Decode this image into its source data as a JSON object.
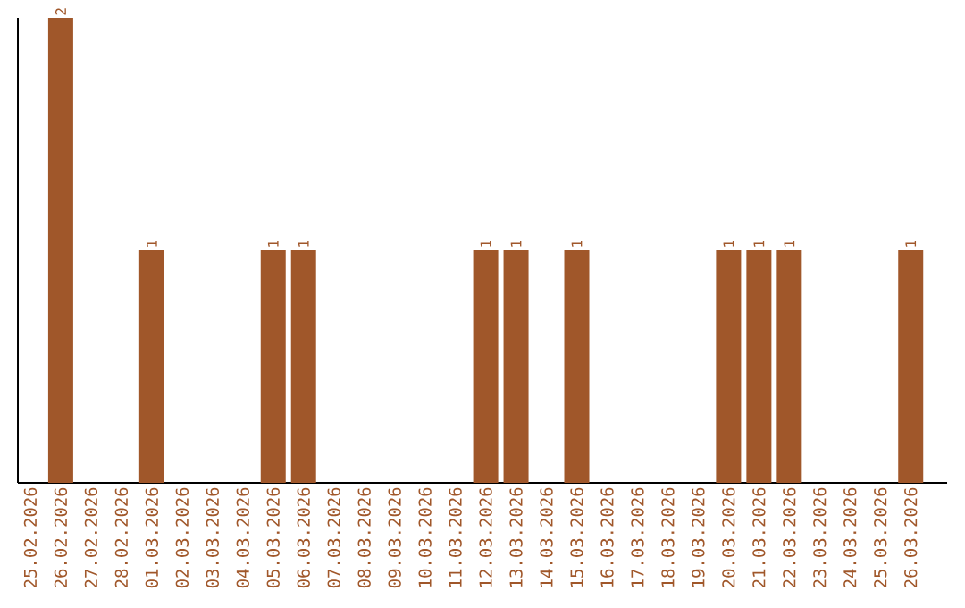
{
  "chart_data": {
    "type": "bar",
    "categories": [
      "25.02.2026",
      "26.02.2026",
      "27.02.2026",
      "28.02.2026",
      "01.03.2026",
      "02.03.2026",
      "03.03.2026",
      "04.03.2026",
      "05.03.2026",
      "06.03.2026",
      "07.03.2026",
      "08.03.2026",
      "09.03.2026",
      "10.03.2026",
      "11.03.2026",
      "12.03.2026",
      "13.03.2026",
      "14.03.2026",
      "15.03.2026",
      "16.03.2026",
      "17.03.2026",
      "18.03.2026",
      "19.03.2026",
      "20.03.2026",
      "21.03.2026",
      "22.03.2026",
      "23.03.2026",
      "24.03.2026",
      "25.03.2026",
      "26.03.2026"
    ],
    "values": [
      0,
      2,
      0,
      0,
      1,
      0,
      0,
      0,
      1,
      1,
      0,
      0,
      0,
      0,
      0,
      1,
      1,
      0,
      1,
      0,
      0,
      0,
      0,
      1,
      1,
      1,
      0,
      0,
      0,
      1
    ],
    "value_labels": [
      null,
      "2",
      null,
      null,
      "1",
      null,
      null,
      null,
      "1",
      "1",
      null,
      null,
      null,
      null,
      null,
      "1",
      "1",
      null,
      "1",
      null,
      null,
      null,
      null,
      "1",
      "1",
      "1",
      null,
      null,
      null,
      "1"
    ],
    "color": "#a0572a"
  }
}
